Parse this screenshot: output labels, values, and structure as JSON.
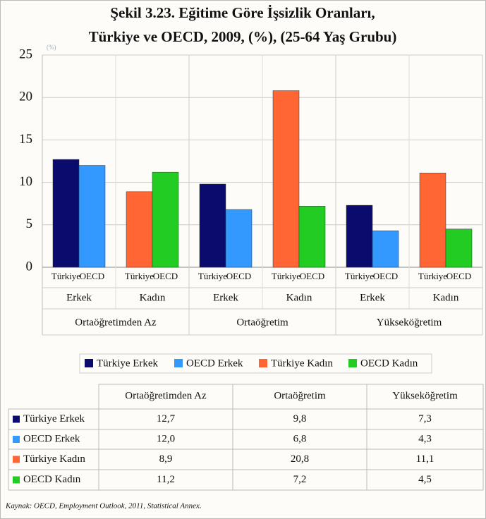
{
  "chart_data": {
    "type": "bar",
    "title": [
      "Şekil 3.23. Eğitime Göre İşsizlik Oranları,",
      "Türkiye ve OECD, 2009, (%), (25-64 Yaş Grubu)"
    ],
    "unit_label": "(%)",
    "ylim": [
      0,
      25
    ],
    "yticks": [
      0,
      5,
      10,
      15,
      20,
      25
    ],
    "grid": true,
    "groups": [
      "Ortaöğretimden Az",
      "Ortaöğretim",
      "Yükseköğretim"
    ],
    "subgroups": [
      "Erkek",
      "Kadın"
    ],
    "bar_labels": [
      "Türkiye",
      "OECD"
    ],
    "series": [
      {
        "name": "Türkiye Erkek",
        "color": "#0b0b6e",
        "values": [
          12.7,
          9.8,
          7.3
        ],
        "value_labels": [
          "12,7",
          "9,8",
          "7,3"
        ]
      },
      {
        "name": "OECD Erkek",
        "color": "#3399ff",
        "values": [
          12.0,
          6.8,
          4.3
        ],
        "value_labels": [
          "12,0",
          "6,8",
          "4,3"
        ]
      },
      {
        "name": "Türkiye Kadın",
        "color": "#ff6633",
        "values": [
          8.9,
          20.8,
          11.1
        ],
        "value_labels": [
          "8,9",
          "20,8",
          "11,1"
        ]
      },
      {
        "name": "OECD Kadın",
        "color": "#22cc22",
        "values": [
          11.2,
          7.2,
          4.5
        ],
        "value_labels": [
          "11,2",
          "7,2",
          "4,5"
        ]
      }
    ],
    "source": "Kaynak: OECD, Employment Outlook, 2011, Statistical Annex."
  }
}
